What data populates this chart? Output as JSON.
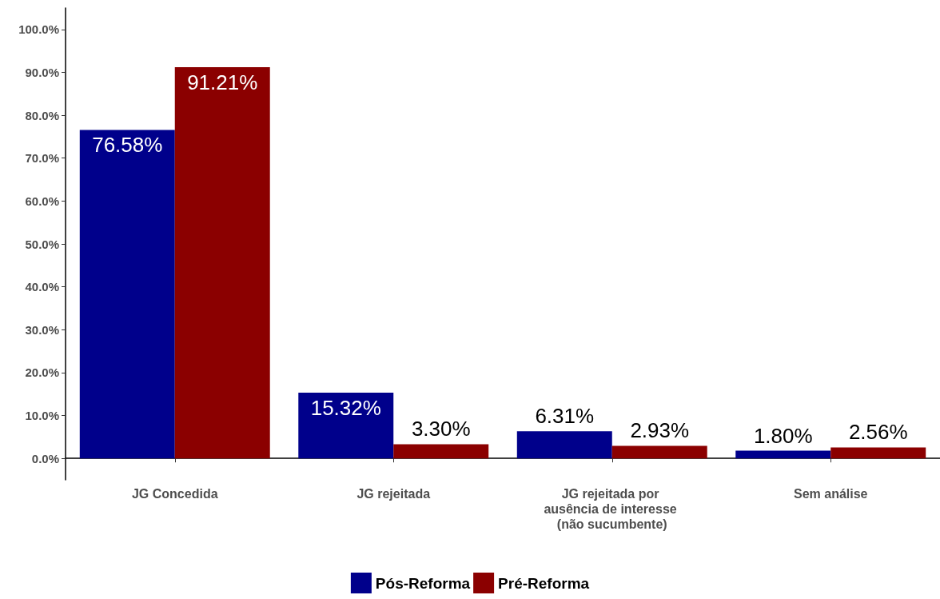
{
  "chart_data": {
    "type": "bar",
    "categories": [
      "JG Concedida",
      "JG rejeitada",
      "JG rejeitada por ausência de interesse (não sucumbente)",
      "Sem análise"
    ],
    "series": [
      {
        "name": "Pós-Reforma",
        "color": "#00008b",
        "values": [
          76.58,
          15.32,
          6.31,
          1.8
        ],
        "value_labels": [
          "76.58%",
          "15.32%",
          "6.31%",
          "1.80%"
        ]
      },
      {
        "name": "Pré-Reforma",
        "color": "#8b0000",
        "values": [
          91.21,
          3.3,
          2.93,
          2.56
        ],
        "value_labels": [
          "91.21%",
          "3.30%",
          "2.93%",
          "2.56%"
        ]
      }
    ],
    "ylim": [
      -5,
      105
    ],
    "yticks": [
      {
        "value": 0,
        "label": "0.0%"
      },
      {
        "value": 10,
        "label": "10.0%"
      },
      {
        "value": 20,
        "label": "20.0%"
      },
      {
        "value": 30,
        "label": "30.0%"
      },
      {
        "value": 40,
        "label": "40.0%"
      },
      {
        "value": 50,
        "label": "50.0%"
      },
      {
        "value": 60,
        "label": "60.0%"
      },
      {
        "value": 70,
        "label": "70.0%"
      },
      {
        "value": 80,
        "label": "80.0%"
      },
      {
        "value": 90,
        "label": "90.0%"
      },
      {
        "value": 100,
        "label": "100.0%"
      }
    ],
    "grid": false,
    "legend": "bottom"
  }
}
